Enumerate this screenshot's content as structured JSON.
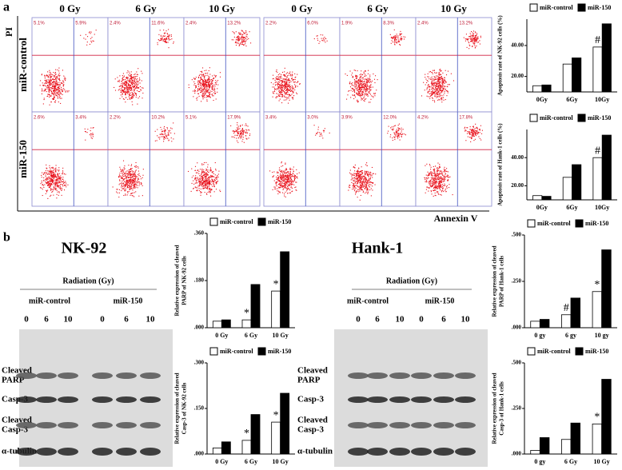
{
  "panel_labels": [
    "a",
    "b"
  ],
  "flow": {
    "column_labels": [
      "0 Gy",
      "6 Gy",
      "10 Gy",
      "0 Gy",
      "6 Gy",
      "10 Gy"
    ],
    "row_labels": [
      "miR-control",
      "miR-150"
    ],
    "y_label": "PI",
    "x_label": "Annexin V",
    "quadrants": [
      [
        [
          "5.1%",
          "5.9%"
        ],
        [
          "2.4%",
          "11.6%"
        ],
        [
          "2.4%",
          "13.2%"
        ],
        [
          "2.2%",
          "6.0%"
        ],
        [
          "1.9%",
          "8.3%"
        ],
        [
          "2.4%",
          "13.2%"
        ]
      ],
      [
        [
          "2.6%",
          "3.4%"
        ],
        [
          "2.2%",
          "10.2%"
        ],
        [
          "5.1%",
          "17.9%"
        ],
        [
          "3.4%",
          "3.0%"
        ],
        [
          "3.9%",
          "12.0%"
        ],
        [
          "4.2%",
          "17.8%"
        ]
      ]
    ]
  },
  "blots": [
    {
      "title": "NK-92",
      "radiation": "Radiation (Gy)",
      "groups": [
        "miR-control",
        "miR-150"
      ],
      "doses": [
        "0",
        "6",
        "10",
        "0",
        "6",
        "10"
      ],
      "rows": [
        [
          "Cleaved",
          "PARP"
        ],
        [
          "Casp-3"
        ],
        [
          "Cleaved",
          "Casp-3"
        ],
        [
          "α-tubulin"
        ]
      ]
    },
    {
      "title": "Hank-1",
      "radiation": "Radiation (Gy)",
      "groups": [
        "miR-control",
        "miR-150"
      ],
      "doses": [
        "0",
        "6",
        "10",
        "0",
        "6",
        "10"
      ],
      "rows": [
        [
          "Cleaved",
          "PARP"
        ],
        [
          "Casp-3"
        ],
        [
          "Cleaved",
          "Casp-3"
        ],
        [
          "α-tubulin"
        ]
      ]
    }
  ],
  "chart_data": [
    {
      "type": "bar",
      "y_label": [
        "Apoptosis rate of NK-92 cells (%)"
      ],
      "categories": [
        "0Gy",
        "6Gy",
        "10Gy"
      ],
      "series": [
        {
          "name": "miR-control",
          "color": "#ffffff",
          "values": [
            14,
            28,
            39
          ],
          "annotations": [
            null,
            null,
            "#"
          ]
        },
        {
          "name": "miR-150",
          "color": "#000000",
          "values": [
            14.5,
            32,
            54
          ]
        }
      ],
      "ylim": [
        10,
        57
      ],
      "yticks": [
        {
          "value": 20,
          "label": "20.00"
        },
        {
          "value": 40,
          "label": "40.00"
        }
      ]
    },
    {
      "type": "bar",
      "y_label": [
        "Apoptosis rate of Hank-1 cells (%)"
      ],
      "categories": [
        "0Gy",
        "6Gy",
        "10Gy"
      ],
      "series": [
        {
          "name": "miR-control",
          "color": "#ffffff",
          "values": [
            13,
            26,
            40
          ],
          "annotations": [
            null,
            null,
            "#"
          ]
        },
        {
          "name": "miR-150",
          "color": "#000000",
          "values": [
            12.5,
            35,
            56
          ]
        }
      ],
      "ylim": [
        10,
        60
      ],
      "yticks": [
        {
          "value": 20,
          "label": "20.00"
        },
        {
          "value": 40,
          "label": "40.00"
        }
      ]
    },
    {
      "type": "bar",
      "y_label": [
        "Relative expression of cleaved",
        "PARP of NK-92 cells"
      ],
      "categories": [
        "0 Gy",
        "6 Gy",
        "10 Gy"
      ],
      "series": [
        {
          "name": "miR-control",
          "color": "#ffffff",
          "values": [
            0.025,
            0.03,
            0.14
          ],
          "annotations": [
            null,
            "*",
            "*"
          ]
        },
        {
          "name": "miR-150",
          "color": "#000000",
          "values": [
            0.03,
            0.165,
            0.29
          ]
        }
      ],
      "ylim": [
        0,
        0.36
      ],
      "yticks": [
        {
          "value": 0,
          "label": ".000"
        },
        {
          "value": 0.18,
          "label": ".180"
        },
        {
          "value": 0.36,
          "label": ".360"
        }
      ]
    },
    {
      "type": "bar",
      "y_label": [
        "Relative expression of cleaved",
        "Casp-3 of NK-92 cells"
      ],
      "categories": [
        "0 Gy",
        "6 Gy",
        "10 Gy"
      ],
      "series": [
        {
          "name": "miR-control",
          "color": "#ffffff",
          "values": [
            0.02,
            0.045,
            0.105
          ],
          "annotations": [
            null,
            "*",
            "*"
          ]
        },
        {
          "name": "miR-150",
          "color": "#000000",
          "values": [
            0.04,
            0.13,
            0.2
          ]
        }
      ],
      "ylim": [
        0,
        0.3
      ],
      "yticks": [
        {
          "value": 0,
          "label": ".000"
        },
        {
          "value": 0.15,
          "label": ".150"
        },
        {
          "value": 0.3,
          "label": ".300"
        }
      ]
    },
    {
      "type": "bar",
      "y_label": [
        "Relative expression of cleaved",
        "PARP of Hank-1 cells"
      ],
      "categories": [
        "0 gy",
        "6 gy",
        "10 gy"
      ],
      "series": [
        {
          "name": "miR-control",
          "color": "#ffffff",
          "values": [
            0.035,
            0.07,
            0.195
          ],
          "annotations": [
            null,
            "#",
            "*"
          ]
        },
        {
          "name": "miR-150",
          "color": "#000000",
          "values": [
            0.045,
            0.16,
            0.42
          ]
        }
      ],
      "ylim": [
        0,
        0.5
      ],
      "yticks": [
        {
          "value": 0,
          "label": ".000"
        },
        {
          "value": 0.25,
          "label": ".250"
        },
        {
          "value": 0.5,
          "label": ".500"
        }
      ]
    },
    {
      "type": "bar",
      "y_label": [
        "Relative expression of cleaved",
        "Casp-3 of Hank-1 cells"
      ],
      "categories": [
        "0 gy",
        "6 Gy",
        "10 Gy"
      ],
      "series": [
        {
          "name": "miR-control",
          "color": "#ffffff",
          "values": [
            0.02,
            0.08,
            0.165
          ],
          "annotations": [
            null,
            null,
            "*"
          ]
        },
        {
          "name": "miR-150",
          "color": "#000000",
          "values": [
            0.09,
            0.17,
            0.41
          ]
        }
      ],
      "ylim": [
        0,
        0.5
      ],
      "yticks": [
        {
          "value": 0,
          "label": ".000"
        },
        {
          "value": 0.25,
          "label": ".250"
        },
        {
          "value": 0.5,
          "label": ".500"
        }
      ]
    }
  ]
}
